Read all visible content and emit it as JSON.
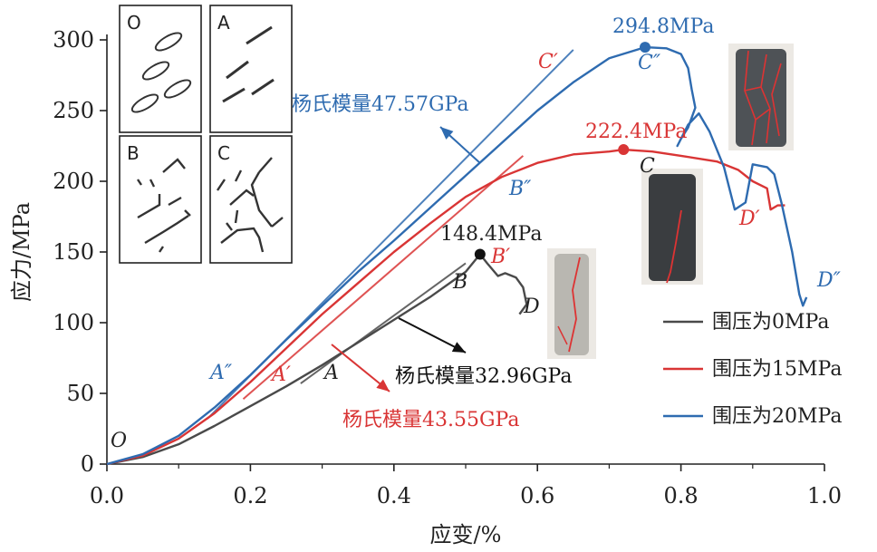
{
  "chart_data": {
    "type": "line",
    "xlabel": "应变/%",
    "ylabel": "应力/MPa",
    "xlim": [
      0,
      1.0
    ],
    "ylim": [
      0,
      300
    ],
    "x_ticks": [
      "0.0",
      "0.2",
      "0.4",
      "0.6",
      "0.8",
      "1.0"
    ],
    "y_ticks": [
      "0",
      "50",
      "100",
      "150",
      "200",
      "250",
      "300"
    ],
    "grid": false,
    "legend_position": "bottom-right",
    "series": [
      {
        "name": "围压为0MPa",
        "color": "#4a4a4a",
        "points": [
          [
            0,
            0
          ],
          [
            0.05,
            5
          ],
          [
            0.1,
            14
          ],
          [
            0.15,
            27
          ],
          [
            0.2,
            41
          ],
          [
            0.25,
            55
          ],
          [
            0.3,
            70
          ],
          [
            0.35,
            86
          ],
          [
            0.4,
            102
          ],
          [
            0.45,
            118
          ],
          [
            0.5,
            136
          ],
          [
            0.52,
            148.4
          ],
          [
            0.53,
            142
          ],
          [
            0.545,
            133
          ],
          [
            0.555,
            135
          ],
          [
            0.57,
            132
          ],
          [
            0.58,
            125
          ],
          [
            0.585,
            113
          ],
          [
            0.575,
            106
          ]
        ]
      },
      {
        "name": "围压为15MPa",
        "color": "#d93535",
        "points": [
          [
            0,
            0
          ],
          [
            0.05,
            6
          ],
          [
            0.1,
            18
          ],
          [
            0.15,
            36
          ],
          [
            0.2,
            58
          ],
          [
            0.25,
            82
          ],
          [
            0.3,
            106
          ],
          [
            0.35,
            128
          ],
          [
            0.4,
            150
          ],
          [
            0.45,
            170
          ],
          [
            0.5,
            189
          ],
          [
            0.55,
            203
          ],
          [
            0.6,
            213
          ],
          [
            0.65,
            219
          ],
          [
            0.7,
            221
          ],
          [
            0.72,
            222.4
          ],
          [
            0.76,
            221
          ],
          [
            0.8,
            218
          ],
          [
            0.85,
            214
          ],
          [
            0.88,
            208
          ],
          [
            0.9,
            200
          ],
          [
            0.92,
            195
          ],
          [
            0.925,
            180
          ],
          [
            0.935,
            183
          ],
          [
            0.945,
            183
          ]
        ]
      },
      {
        "name": "围压为20MPa",
        "color": "#2e6bb0",
        "points": [
          [
            0,
            0
          ],
          [
            0.05,
            7
          ],
          [
            0.1,
            20
          ],
          [
            0.15,
            40
          ],
          [
            0.2,
            63
          ],
          [
            0.25,
            88
          ],
          [
            0.3,
            112
          ],
          [
            0.35,
            136
          ],
          [
            0.4,
            158
          ],
          [
            0.45,
            181
          ],
          [
            0.5,
            204
          ],
          [
            0.55,
            227
          ],
          [
            0.6,
            250
          ],
          [
            0.65,
            270
          ],
          [
            0.7,
            287
          ],
          [
            0.75,
            294.8
          ],
          [
            0.78,
            294
          ],
          [
            0.8,
            290
          ],
          [
            0.81,
            280
          ],
          [
            0.815,
            265
          ],
          [
            0.82,
            252
          ],
          [
            0.81,
            238
          ],
          [
            0.8,
            230
          ],
          [
            0.795,
            225
          ],
          [
            0.81,
            240
          ],
          [
            0.825,
            248
          ],
          [
            0.84,
            235
          ],
          [
            0.86,
            210
          ],
          [
            0.875,
            180
          ],
          [
            0.89,
            185
          ],
          [
            0.9,
            212
          ],
          [
            0.92,
            210
          ],
          [
            0.93,
            205
          ],
          [
            0.94,
            185
          ],
          [
            0.955,
            150
          ],
          [
            0.965,
            120
          ],
          [
            0.97,
            112
          ],
          [
            0.975,
            118
          ]
        ]
      }
    ],
    "modulus_lines": [
      {
        "color": "#4a4a4a",
        "points": [
          [
            0.27,
            57
          ],
          [
            0.5,
            142
          ]
        ]
      },
      {
        "color": "#d93535",
        "points": [
          [
            0.19,
            46
          ],
          [
            0.58,
            218
          ]
        ]
      },
      {
        "color": "#2e6bb0",
        "points": [
          [
            0.14,
            32
          ],
          [
            0.65,
            293
          ]
        ]
      }
    ],
    "peak_markers": [
      {
        "x": 0.52,
        "y": 148.4,
        "color": "#111111",
        "label": "148.4MPa"
      },
      {
        "x": 0.72,
        "y": 222.4,
        "color": "#d93535",
        "label": "222.4MPa"
      },
      {
        "x": 0.75,
        "y": 294.8,
        "color": "#2e6bb0",
        "label": "294.8MPa"
      }
    ],
    "modulus_annotations": [
      {
        "text": "杨氏模量47.57GPa",
        "color": "#2e6bb0"
      },
      {
        "text": "杨氏模量32.96GPa",
        "color": "#111111"
      },
      {
        "text": "杨氏模量43.55GPa",
        "color": "#d93535"
      }
    ],
    "point_labels": [
      {
        "text": "O",
        "color": "#222222"
      },
      {
        "text": "A",
        "color": "#222222"
      },
      {
        "text": "A′",
        "color": "#d93535"
      },
      {
        "text": "A″",
        "color": "#2e6bb0"
      },
      {
        "text": "B",
        "color": "#222222"
      },
      {
        "text": "B′",
        "color": "#d93535"
      },
      {
        "text": "B″",
        "color": "#2e6bb0"
      },
      {
        "text": "C",
        "color": "#222222"
      },
      {
        "text": "C′",
        "color": "#d93535"
      },
      {
        "text": "C″",
        "color": "#2e6bb0"
      },
      {
        "text": "D",
        "color": "#222222"
      },
      {
        "text": "D′",
        "color": "#d93535"
      },
      {
        "text": "D″",
        "color": "#2e6bb0"
      }
    ],
    "inset_panels": [
      "O",
      "A",
      "B",
      "C"
    ]
  }
}
